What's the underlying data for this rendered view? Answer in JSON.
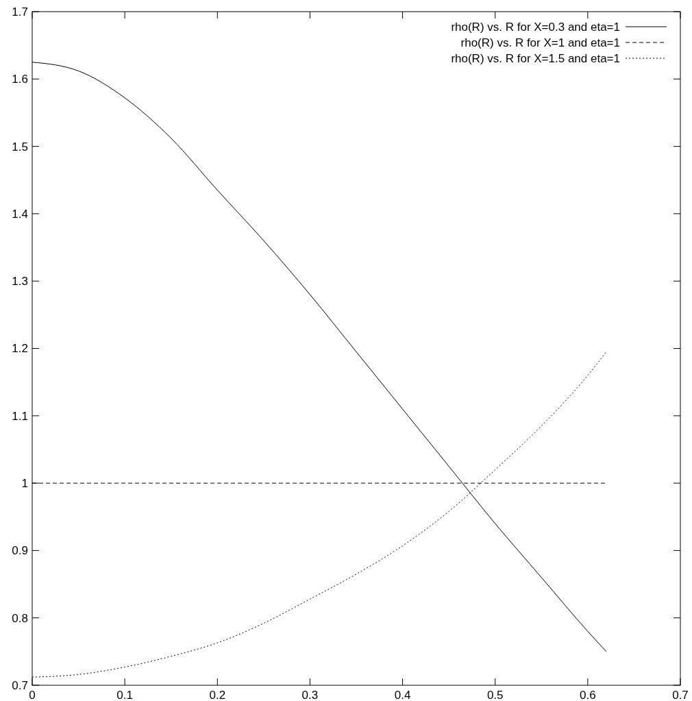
{
  "chart_data": {
    "type": "line",
    "xlim": [
      0,
      0.7
    ],
    "ylim": [
      0.7,
      1.7
    ],
    "xticks": [
      0,
      0.1,
      0.2,
      0.3,
      0.4,
      0.5,
      0.6,
      0.7
    ],
    "yticks": [
      0.7,
      0.8,
      0.9,
      1,
      1.1,
      1.2,
      1.3,
      1.4,
      1.5,
      1.6,
      1.7
    ],
    "grid": false,
    "legend": "top right",
    "x": [
      0,
      0.05,
      0.1,
      0.15,
      0.2,
      0.25,
      0.3,
      0.35,
      0.4,
      0.45,
      0.5,
      0.55,
      0.6,
      0.62
    ],
    "series": [
      {
        "name": "rho(R) vs. R for X=0.3 and eta=1",
        "color": "#000000",
        "line_style": "solid",
        "values": [
          1.625,
          1.612,
          1.572,
          1.512,
          1.435,
          1.36,
          1.28,
          1.195,
          1.11,
          1.025,
          0.94,
          0.86,
          0.78,
          0.75
        ]
      },
      {
        "name": "rho(R) vs. R for X=1 and eta=1",
        "color": "#000000",
        "line_style": "dashed",
        "values": [
          1,
          1,
          1,
          1,
          1,
          1,
          1,
          1,
          1,
          1,
          1,
          1,
          1,
          1
        ]
      },
      {
        "name": "rho(R) vs. R for X=1.5 and eta=1",
        "color": "#000000",
        "line_style": "dotted",
        "values": [
          0.712,
          0.716,
          0.727,
          0.743,
          0.763,
          0.792,
          0.828,
          0.865,
          0.907,
          0.958,
          1.02,
          1.085,
          1.16,
          1.195
        ]
      }
    ]
  }
}
